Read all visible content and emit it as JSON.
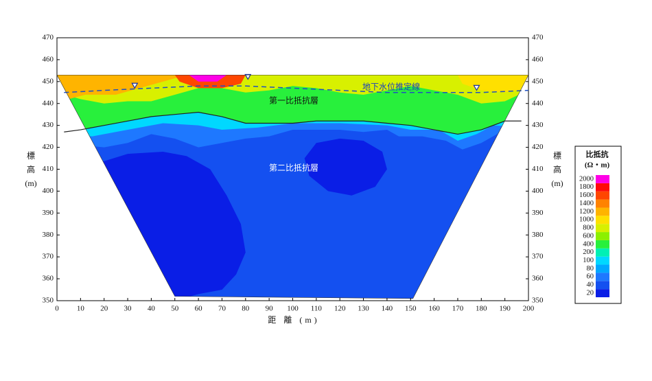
{
  "chart_data": {
    "type": "contour-section",
    "xlabel": "距 離 (m)",
    "ylabel": [
      "標",
      "高",
      "(m)"
    ],
    "y2label": [
      "標",
      "高",
      "(m)"
    ],
    "xlim": [
      0,
      200
    ],
    "xticks": [
      0,
      10,
      20,
      30,
      40,
      50,
      60,
      70,
      80,
      90,
      100,
      110,
      120,
      130,
      140,
      150,
      160,
      170,
      180,
      190,
      200
    ],
    "ylim": [
      350,
      470
    ],
    "yticks": [
      350,
      360,
      370,
      380,
      390,
      400,
      410,
      420,
      430,
      440,
      450,
      460,
      470
    ],
    "y2lim": [
      350,
      470
    ],
    "y2ticks": [
      350,
      360,
      370,
      380,
      390,
      400,
      410,
      420,
      430,
      440,
      450,
      460,
      470
    ],
    "legend_title": [
      "比抵抗",
      "(Ω・m)"
    ],
    "levels": [
      {
        "value": 20,
        "color": "#0a1ee6"
      },
      {
        "value": 40,
        "color": "#1450f0"
      },
      {
        "value": 60,
        "color": "#1e78ff"
      },
      {
        "value": 80,
        "color": "#00a8ff"
      },
      {
        "value": 100,
        "color": "#00d8ff"
      },
      {
        "value": 200,
        "color": "#00f0b4"
      },
      {
        "value": 400,
        "color": "#28f03c"
      },
      {
        "value": 600,
        "color": "#8cf000"
      },
      {
        "value": 800,
        "color": "#d8f000"
      },
      {
        "value": 1000,
        "color": "#ffe000"
      },
      {
        "value": 1200,
        "color": "#ffb400"
      },
      {
        "value": 1400,
        "color": "#ff8200"
      },
      {
        "value": 1600,
        "color": "#ff4600"
      },
      {
        "value": 1800,
        "color": "#ff0a0a"
      },
      {
        "value": 2000,
        "color": "#ff00e6"
      }
    ],
    "section": [
      [
        0,
        453
      ],
      [
        200,
        453
      ],
      [
        151,
        351
      ],
      [
        50,
        352
      ]
    ],
    "zones": [
      {
        "value": 40,
        "points": [
          [
            0,
            350
          ],
          [
            200,
            350
          ],
          [
            200,
            455
          ],
          [
            0,
            455
          ]
        ]
      },
      {
        "value": 20,
        "points": [
          [
            0,
            405
          ],
          [
            15,
            412
          ],
          [
            30,
            417
          ],
          [
            45,
            418
          ],
          [
            55,
            416
          ],
          [
            65,
            410
          ],
          [
            72,
            398
          ],
          [
            78,
            385
          ],
          [
            80,
            372
          ],
          [
            76,
            362
          ],
          [
            70,
            355
          ],
          [
            60,
            353
          ],
          [
            50,
            350
          ],
          [
            0,
            350
          ]
        ]
      },
      {
        "value": 20,
        "points": [
          [
            105,
            415
          ],
          [
            110,
            422
          ],
          [
            120,
            424
          ],
          [
            130,
            423
          ],
          [
            138,
            418
          ],
          [
            140,
            410
          ],
          [
            135,
            402
          ],
          [
            125,
            398
          ],
          [
            115,
            400
          ],
          [
            107,
            407
          ]
        ]
      },
      {
        "value": 60,
        "points": [
          [
            0,
            455
          ],
          [
            200,
            455
          ],
          [
            200,
            425
          ],
          [
            190,
            428
          ],
          [
            180,
            422
          ],
          [
            172,
            419
          ],
          [
            165,
            423
          ],
          [
            155,
            425
          ],
          [
            145,
            425
          ],
          [
            140,
            428
          ],
          [
            130,
            427
          ],
          [
            120,
            428
          ],
          [
            100,
            428
          ],
          [
            90,
            425
          ],
          [
            80,
            424
          ],
          [
            70,
            422
          ],
          [
            60,
            420
          ],
          [
            50,
            424
          ],
          [
            40,
            426
          ],
          [
            30,
            422
          ],
          [
            20,
            420
          ],
          [
            10,
            421
          ],
          [
            0,
            422
          ]
        ]
      },
      {
        "value": 100,
        "points": [
          [
            0,
            455
          ],
          [
            200,
            455
          ],
          [
            200,
            429
          ],
          [
            185,
            430
          ],
          [
            178,
            426
          ],
          [
            170,
            423
          ],
          [
            162,
            428
          ],
          [
            150,
            428
          ],
          [
            140,
            430
          ],
          [
            120,
            431
          ],
          [
            100,
            431
          ],
          [
            85,
            429
          ],
          [
            70,
            428
          ],
          [
            60,
            430
          ],
          [
            45,
            431
          ],
          [
            30,
            428
          ],
          [
            15,
            425
          ],
          [
            0,
            426
          ]
        ]
      },
      {
        "value": 400,
        "points": [
          [
            0,
            455
          ],
          [
            200,
            455
          ],
          [
            200,
            432
          ],
          [
            190,
            432
          ],
          [
            180,
            428
          ],
          [
            170,
            426
          ],
          [
            160,
            428
          ],
          [
            150,
            430
          ],
          [
            140,
            431
          ],
          [
            130,
            432
          ],
          [
            120,
            432
          ],
          [
            110,
            432
          ],
          [
            100,
            431
          ],
          [
            90,
            431
          ],
          [
            80,
            431
          ],
          [
            70,
            434
          ],
          [
            60,
            436
          ],
          [
            50,
            435
          ],
          [
            40,
            434
          ],
          [
            30,
            432
          ],
          [
            20,
            430
          ],
          [
            10,
            428
          ],
          [
            0,
            427
          ]
        ]
      },
      {
        "value": 800,
        "points": [
          [
            0,
            453
          ],
          [
            200,
            453
          ],
          [
            200,
            446
          ],
          [
            190,
            441
          ],
          [
            180,
            440
          ],
          [
            170,
            444
          ],
          [
            160,
            446
          ],
          [
            150,
            448
          ],
          [
            140,
            446
          ],
          [
            130,
            444
          ],
          [
            120,
            445
          ],
          [
            110,
            447
          ],
          [
            100,
            448
          ],
          [
            90,
            446
          ],
          [
            80,
            445
          ],
          [
            70,
            447
          ],
          [
            60,
            447
          ],
          [
            50,
            444
          ],
          [
            40,
            441
          ],
          [
            30,
            441
          ],
          [
            20,
            440
          ],
          [
            10,
            442
          ],
          [
            0,
            445
          ]
        ]
      },
      {
        "value": 1200,
        "points": [
          [
            0,
            453
          ],
          [
            55,
            453
          ],
          [
            45,
            450
          ],
          [
            35,
            447
          ],
          [
            25,
            444
          ],
          [
            12,
            444
          ],
          [
            5,
            442
          ],
          [
            0,
            445
          ]
        ]
      },
      {
        "value": 1000,
        "points": [
          [
            170,
            453
          ],
          [
            200,
            453
          ],
          [
            200,
            447
          ],
          [
            190,
            445
          ],
          [
            180,
            446
          ],
          [
            172,
            449
          ]
        ]
      },
      {
        "value": 1600,
        "points": [
          [
            50,
            453
          ],
          [
            80,
            453
          ],
          [
            78,
            449
          ],
          [
            70,
            447
          ],
          [
            60,
            447
          ],
          [
            52,
            450
          ]
        ]
      },
      {
        "value": 2000,
        "points": [
          [
            56,
            453
          ],
          [
            72,
            453
          ],
          [
            68,
            450
          ],
          [
            60,
            450
          ]
        ]
      }
    ],
    "boundary": {
      "x": [
        3,
        10,
        20,
        30,
        40,
        50,
        60,
        70,
        80,
        90,
        100,
        110,
        120,
        130,
        140,
        150,
        160,
        170,
        180,
        190,
        197
      ],
      "y": [
        427,
        428,
        430,
        432,
        434,
        435,
        436,
        434,
        431,
        431,
        431,
        432,
        432,
        432,
        431,
        430,
        428,
        426,
        428,
        432,
        432
      ]
    },
    "water_table": {
      "x": [
        3,
        20,
        40,
        60,
        80,
        100,
        120,
        140,
        160,
        180,
        200
      ],
      "y": [
        445,
        446,
        447,
        448,
        448,
        447,
        446,
        445,
        445,
        445,
        446
      ],
      "color": "#2050c0"
    },
    "markers": {
      "x": [
        33,
        81,
        178
      ],
      "y": [
        448,
        452,
        447
      ]
    },
    "annotations": [
      "地下水位推定線",
      "第一比抵抗層",
      "第二比抵抗層"
    ]
  }
}
